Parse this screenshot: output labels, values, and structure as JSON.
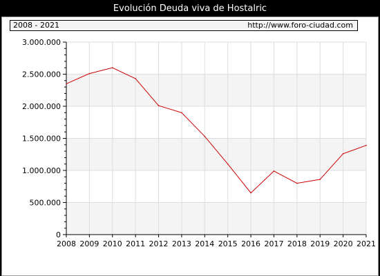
{
  "header": {
    "title": "Evolución Deuda viva de Hostalric",
    "period": "2008 - 2021",
    "source": "http://www.foro-ciudad.com"
  },
  "colors": {
    "background": "#000000",
    "panel": "#ffffff",
    "band": "#f4f4f4",
    "grid": "#dddddd",
    "line": "#cc0000"
  },
  "chart_data": {
    "type": "line",
    "title": "Evolución Deuda viva de Hostalric",
    "xlabel": "",
    "ylabel": "",
    "x": [
      2008,
      2009,
      2010,
      2011,
      2012,
      2013,
      2014,
      2015,
      2016,
      2017,
      2018,
      2019,
      2020,
      2021
    ],
    "series": [
      {
        "values": [
          2350000,
          2510000,
          2600000,
          2430000,
          2010000,
          1900000,
          1530000,
          1100000,
          650000,
          990000,
          800000,
          860000,
          1260000,
          1390000
        ]
      }
    ],
    "ylim": [
      0,
      3000000
    ],
    "yticks": [
      0,
      500000,
      1000000,
      1500000,
      2000000,
      2500000,
      3000000
    ],
    "ytick_labels": [
      "0",
      "500.000",
      "1.000.000",
      "1.500.000",
      "2.000.000",
      "2.500.000",
      "3.000.000"
    ],
    "xtick_labels": [
      "2008",
      "2009",
      "2010",
      "2011",
      "2012",
      "2013",
      "2014",
      "2015",
      "2016",
      "2017",
      "2018",
      "2019",
      "2020",
      "2021"
    ],
    "grid": true,
    "legend": "none"
  }
}
